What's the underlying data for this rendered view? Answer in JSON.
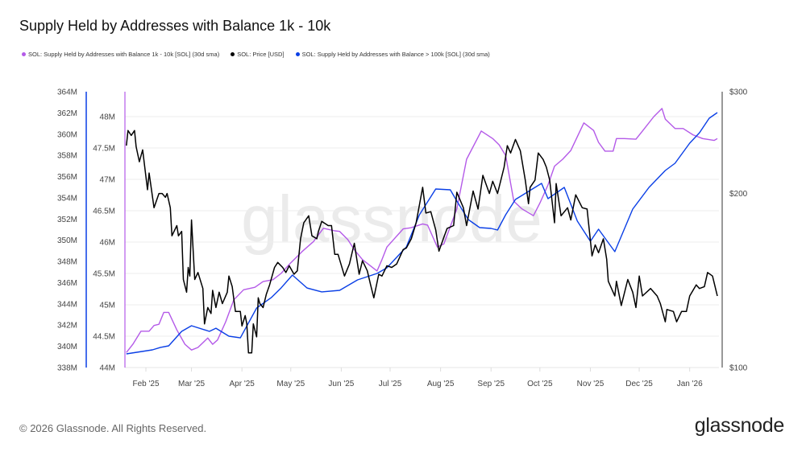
{
  "title": "Supply Held by Addresses with Balance 1k - 10k",
  "footer": "© 2026 Glassnode. All Rights Reserved.",
  "logo": "glassnode",
  "watermark": "glassnode",
  "chart_data": {
    "type": "line",
    "title": "Supply Held by Addresses with Balance 1k - 10k",
    "grid": true,
    "legend_position": "top-left",
    "x_ticks": [
      "Feb '25",
      "Mar '25",
      "Apr '25",
      "May '25",
      "Jun '25",
      "Jul '25",
      "Aug '25",
      "Sep '25",
      "Oct '25",
      "Nov '25",
      "Dec '25",
      "Jan '26"
    ],
    "x_tick_dates": [
      "2025-02-01",
      "2025-03-01",
      "2025-04-01",
      "2025-05-01",
      "2025-06-01",
      "2025-07-01",
      "2025-08-01",
      "2025-09-01",
      "2025-10-01",
      "2025-11-01",
      "2025-12-01",
      "2026-01-01"
    ],
    "xlim": [
      "2025-01-19",
      "2026-01-19"
    ],
    "axes": {
      "outer_left": {
        "series": 2,
        "ylim": [
          338,
          364
        ],
        "ticks": [
          "338M",
          "340M",
          "342M",
          "344M",
          "346M",
          "348M",
          "350M",
          "352M",
          "354M",
          "356M",
          "358M",
          "360M",
          "362M",
          "364M"
        ],
        "color": "#0a3fe6"
      },
      "inner_left": {
        "series": 0,
        "ylim": [
          44,
          48
        ],
        "ticks": [
          "44M",
          "44.5M",
          "45M",
          "45.5M",
          "46M",
          "46.5M",
          "47M",
          "47.5M",
          "48M"
        ],
        "color": "#b45ae8"
      },
      "right": {
        "series": 1,
        "scale": "log",
        "ylim": [
          100,
          300
        ],
        "ticks": [
          "$100",
          "$200",
          "$300"
        ],
        "color": "#111111"
      }
    },
    "series": [
      {
        "name": "SOL: Supply Held by Addresses with Balance 1k - 10k [SOL] (30d sma)",
        "unit": "M SOL",
        "color": "#b45ae8",
        "dates": [
          "2025-01-20",
          "2025-01-24",
          "2025-01-29",
          "2025-02-03",
          "2025-02-06",
          "2025-02-09",
          "2025-02-12",
          "2025-02-15",
          "2025-02-20",
          "2025-02-25",
          "2025-03-01",
          "2025-03-05",
          "2025-03-11",
          "2025-03-14",
          "2025-03-17",
          "2025-03-22",
          "2025-03-27",
          "2025-04-02",
          "2025-04-09",
          "2025-04-14",
          "2025-04-20",
          "2025-04-25",
          "2025-05-01",
          "2025-05-08",
          "2025-05-15",
          "2025-05-21",
          "2025-05-28",
          "2025-05-31",
          "2025-06-05",
          "2025-06-09",
          "2025-06-14",
          "2025-06-23",
          "2025-06-26",
          "2025-06-29",
          "2025-07-09",
          "2025-07-14",
          "2025-07-21",
          "2025-07-24",
          "2025-07-30",
          "2025-08-03",
          "2025-08-11",
          "2025-08-17",
          "2025-08-26",
          "2025-09-02",
          "2025-09-06",
          "2025-09-10",
          "2025-09-15",
          "2025-09-20",
          "2025-09-27",
          "2025-10-01",
          "2025-10-06",
          "2025-10-10",
          "2025-10-15",
          "2025-10-20",
          "2025-10-28",
          "2025-11-03",
          "2025-11-06",
          "2025-11-10",
          "2025-11-15",
          "2025-11-17",
          "2025-11-22",
          "2025-11-29",
          "2025-12-03",
          "2025-12-10",
          "2025-12-15",
          "2025-12-17",
          "2025-12-23",
          "2025-12-28",
          "2026-01-03",
          "2026-01-09",
          "2026-01-16",
          "2026-01-18"
        ],
        "values": [
          44.24,
          44.37,
          44.58,
          44.58,
          44.67,
          44.69,
          44.88,
          44.88,
          44.6,
          44.37,
          44.28,
          44.32,
          44.47,
          44.37,
          44.44,
          44.73,
          45.08,
          45.24,
          45.28,
          45.37,
          45.4,
          45.5,
          45.67,
          45.85,
          46.01,
          46.22,
          46.18,
          46.17,
          46.04,
          45.88,
          45.72,
          45.54,
          45.72,
          45.92,
          46.21,
          46.23,
          46.29,
          46.27,
          45.92,
          45.97,
          46.53,
          47.32,
          47.77,
          47.65,
          47.55,
          47.38,
          46.65,
          46.53,
          46.42,
          46.62,
          46.91,
          47.21,
          47.32,
          47.46,
          47.9,
          47.78,
          47.59,
          47.45,
          47.45,
          47.65,
          47.65,
          47.64,
          47.77,
          48.0,
          48.13,
          47.96,
          47.81,
          47.81,
          47.71,
          47.65,
          47.62,
          47.65
        ]
      },
      {
        "name": "SOL: Price [USD]",
        "unit": "USD",
        "color": "#000000",
        "dates": [
          "2025-01-20",
          "2025-01-21",
          "2025-01-23",
          "2025-01-25",
          "2025-01-26",
          "2025-01-28",
          "2025-01-30",
          "2025-02-02",
          "2025-02-03",
          "2025-02-06",
          "2025-02-09",
          "2025-02-11",
          "2025-02-13",
          "2025-02-14",
          "2025-02-16",
          "2025-02-17",
          "2025-02-20",
          "2025-02-21",
          "2025-02-23",
          "2025-02-24",
          "2025-02-26",
          "2025-02-27",
          "2025-02-28",
          "2025-03-01",
          "2025-03-03",
          "2025-03-05",
          "2025-03-08",
          "2025-03-09",
          "2025-03-11",
          "2025-03-13",
          "2025-03-14",
          "2025-03-16",
          "2025-03-18",
          "2025-03-20",
          "2025-03-23",
          "2025-03-24",
          "2025-03-26",
          "2025-03-28",
          "2025-03-31",
          "2025-04-01",
          "2025-04-03",
          "2025-04-04",
          "2025-04-05",
          "2025-04-07",
          "2025-04-08",
          "2025-04-10",
          "2025-04-11",
          "2025-04-12",
          "2025-04-14",
          "2025-04-16",
          "2025-04-18",
          "2025-04-21",
          "2025-04-23",
          "2025-04-26",
          "2025-04-28",
          "2025-04-30",
          "2025-05-03",
          "2025-05-05",
          "2025-05-07",
          "2025-05-09",
          "2025-05-12",
          "2025-05-14",
          "2025-05-17",
          "2025-05-18",
          "2025-05-20",
          "2025-05-24",
          "2025-05-26",
          "2025-05-28",
          "2025-05-30",
          "2025-06-03",
          "2025-06-06",
          "2025-06-09",
          "2025-06-12",
          "2025-06-14",
          "2025-06-17",
          "2025-06-19",
          "2025-06-21",
          "2025-06-24",
          "2025-06-26",
          "2025-06-29",
          "2025-07-02",
          "2025-07-05",
          "2025-07-09",
          "2025-07-11",
          "2025-07-14",
          "2025-07-17",
          "2025-07-21",
          "2025-07-23",
          "2025-07-26",
          "2025-07-29",
          "2025-07-31",
          "2025-08-03",
          "2025-08-05",
          "2025-08-09",
          "2025-08-11",
          "2025-08-15",
          "2025-08-17",
          "2025-08-21",
          "2025-08-24",
          "2025-08-27",
          "2025-08-31",
          "2025-09-02",
          "2025-09-05",
          "2025-09-09",
          "2025-09-11",
          "2025-09-13",
          "2025-09-16",
          "2025-09-19",
          "2025-09-22",
          "2025-09-24",
          "2025-09-25",
          "2025-09-28",
          "2025-09-30",
          "2025-10-03",
          "2025-10-05",
          "2025-10-07",
          "2025-10-10",
          "2025-10-11",
          "2025-10-14",
          "2025-10-18",
          "2025-10-20",
          "2025-10-23",
          "2025-10-27",
          "2025-10-30",
          "2025-11-02",
          "2025-11-04",
          "2025-11-06",
          "2025-11-09",
          "2025-11-11",
          "2025-11-12",
          "2025-11-16",
          "2025-11-17",
          "2025-11-20",
          "2025-11-24",
          "2025-11-27",
          "2025-11-29",
          "2025-12-01",
          "2025-12-03",
          "2025-12-08",
          "2025-12-12",
          "2025-12-14",
          "2025-12-17",
          "2025-12-18",
          "2025-12-22",
          "2025-12-24",
          "2025-12-27",
          "2025-12-30",
          "2026-01-01",
          "2026-01-05",
          "2026-01-07",
          "2026-01-10",
          "2026-01-12",
          "2026-01-15",
          "2026-01-18"
        ],
        "values": [
          242,
          257,
          252,
          257,
          241,
          227,
          238,
          203,
          217,
          189,
          200,
          200,
          197,
          200,
          189,
          169,
          176,
          169,
          172,
          142,
          135,
          149,
          144,
          180,
          142,
          146,
          137,
          119,
          127,
          124,
          136,
          127,
          135,
          129,
          135,
          144,
          138,
          125,
          125,
          118,
          123,
          119,
          106,
          106,
          119,
          113,
          132,
          129,
          127,
          134,
          139,
          149,
          152,
          149,
          146,
          150,
          145,
          147,
          167,
          178,
          183,
          169,
          167,
          172,
          179,
          176,
          176,
          157,
          157,
          144,
          151,
          164,
          145,
          153,
          147,
          139,
          132,
          145,
          144,
          150,
          149,
          151,
          160,
          161,
          167,
          178,
          205,
          185,
          186,
          173,
          159,
          168,
          174,
          176,
          201,
          189,
          176,
          202,
          188,
          215,
          200,
          210,
          200,
          222,
          242,
          235,
          248,
          237,
          211,
          192,
          205,
          211,
          235,
          229,
          222,
          211,
          178,
          208,
          183,
          189,
          180,
          199,
          189,
          188,
          156,
          163,
          158,
          167,
          154,
          141,
          133,
          141,
          128,
          142,
          135,
          127,
          144,
          133,
          137,
          133,
          129,
          120,
          126,
          125,
          120,
          125,
          125,
          133,
          139,
          137,
          138,
          146,
          144,
          133
        ]
      },
      {
        "name": "SOL: Supply Held by Addresses with Balance > 100k [SOL] (30d sma)",
        "unit": "M SOL",
        "color": "#0a3fe6",
        "dates": [
          "2025-01-20",
          "2025-02-05",
          "2025-02-10",
          "2025-02-15",
          "2025-02-23",
          "2025-03-01",
          "2025-03-12",
          "2025-03-16",
          "2025-03-24",
          "2025-03-31",
          "2025-04-10",
          "2025-04-19",
          "2025-04-25",
          "2025-05-02",
          "2025-05-11",
          "2025-05-20",
          "2025-05-31",
          "2025-06-11",
          "2025-06-23",
          "2025-06-29",
          "2025-07-11",
          "2025-07-19",
          "2025-07-29",
          "2025-08-07",
          "2025-08-11",
          "2025-08-18",
          "2025-08-25",
          "2025-09-01",
          "2025-09-05",
          "2025-09-10",
          "2025-09-16",
          "2025-10-02",
          "2025-10-06",
          "2025-10-16",
          "2025-10-24",
          "2025-11-01",
          "2025-11-06",
          "2025-11-16",
          "2025-11-27",
          "2025-12-07",
          "2025-12-17",
          "2025-12-23",
          "2026-01-01",
          "2026-01-07",
          "2026-01-13",
          "2026-01-18"
        ],
        "values": [
          339.29,
          339.67,
          339.9,
          340.05,
          341.41,
          341.94,
          341.41,
          341.71,
          340.96,
          340.8,
          343.61,
          344.59,
          345.5,
          346.72,
          345.5,
          345.13,
          345.28,
          346.26,
          346.87,
          347.4,
          349.37,
          352.4,
          354.83,
          354.75,
          353.69,
          351.95,
          351.19,
          351.11,
          350.96,
          352.4,
          353.84,
          355.36,
          353.92,
          354.98,
          351.8,
          349.9,
          351.04,
          348.92,
          352.93,
          354.98,
          356.57,
          357.25,
          359.15,
          360.13,
          361.5,
          362.03
        ]
      }
    ]
  }
}
